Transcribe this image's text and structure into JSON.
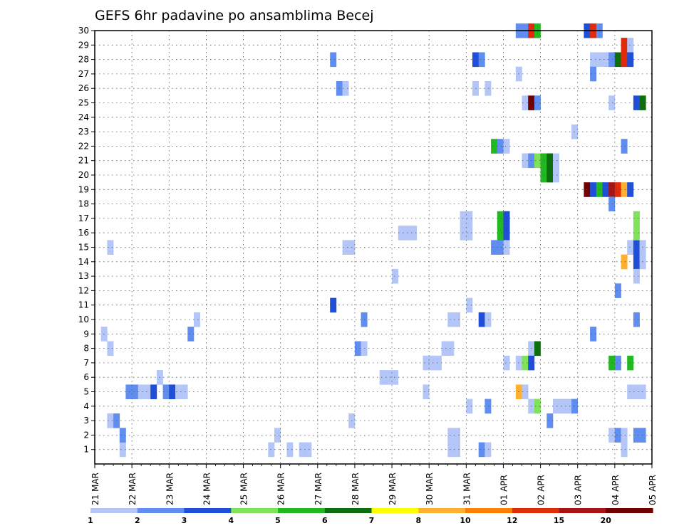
{
  "chart_data": {
    "type": "heatmap",
    "title": "GEFS 6hr padavine po ansamblima Becej",
    "xlabel": "",
    "ylabel": "",
    "x_range": [
      "21 MAR 00Z",
      "05 APR 00Z"
    ],
    "x_step_hours": 6,
    "x_ticks": [
      "21 MAR",
      "22 MAR",
      "23 MAR",
      "24 MAR",
      "25 MAR",
      "26 MAR",
      "27 MAR",
      "28 MAR",
      "29 MAR",
      "30 MAR",
      "31 MAR",
      "01 APR",
      "02 APR",
      "03 APR",
      "04 APR",
      "05 APR"
    ],
    "y_ticks": [
      1,
      2,
      3,
      4,
      5,
      6,
      7,
      8,
      9,
      10,
      11,
      12,
      13,
      14,
      15,
      16,
      17,
      18,
      19,
      20,
      21,
      22,
      23,
      24,
      25,
      26,
      27,
      28,
      29,
      30
    ],
    "y_range": [
      0,
      30
    ],
    "grid": true,
    "colorbar": {
      "labels": [
        "1",
        "2",
        "3",
        "4",
        "5",
        "6",
        "7",
        "8",
        "10",
        "12",
        "15",
        "20"
      ],
      "colors": [
        "#b3c6f7",
        "#5f8ef0",
        "#1f4fd8",
        "#7fe35a",
        "#22b822",
        "#0c6e0c",
        "#ffff00",
        "#ffb030",
        "#ff7f00",
        "#e02a0a",
        "#a81414",
        "#700000"
      ]
    },
    "cells": [
      [
        1,
        9,
        1
      ],
      [
        2,
        3,
        1
      ],
      [
        2,
        8,
        1
      ],
      [
        2,
        15,
        1
      ],
      [
        3,
        3,
        2
      ],
      [
        4,
        1,
        1
      ],
      [
        4,
        2,
        2
      ],
      [
        5,
        5,
        2
      ],
      [
        6,
        5,
        2
      ],
      [
        7,
        5,
        1
      ],
      [
        8,
        5,
        1
      ],
      [
        9,
        5,
        3
      ],
      [
        10,
        6,
        1
      ],
      [
        11,
        5,
        2
      ],
      [
        12,
        5,
        3
      ],
      [
        13,
        5,
        1
      ],
      [
        14,
        5,
        1
      ],
      [
        15,
        9,
        2
      ],
      [
        16,
        10,
        1
      ],
      [
        28,
        1,
        1
      ],
      [
        29,
        2,
        1
      ],
      [
        31,
        1,
        1
      ],
      [
        33,
        1,
        1
      ],
      [
        34,
        1,
        1
      ],
      [
        41,
        3,
        1
      ],
      [
        42,
        8,
        2
      ],
      [
        43,
        8,
        1
      ],
      [
        43,
        10,
        2
      ],
      [
        46,
        6,
        1
      ],
      [
        47,
        6,
        1
      ],
      [
        48,
        6,
        1
      ],
      [
        48,
        13,
        1
      ],
      [
        49,
        16,
        1
      ],
      [
        50,
        16,
        1
      ],
      [
        51,
        16,
        1
      ],
      [
        53,
        5,
        1
      ],
      [
        53,
        7,
        1
      ],
      [
        54,
        7,
        1
      ],
      [
        55,
        7,
        1
      ],
      [
        56,
        8,
        1
      ],
      [
        57,
        8,
        1
      ],
      [
        38,
        28,
        2
      ],
      [
        38,
        11,
        3
      ],
      [
        39,
        26,
        2
      ],
      [
        40,
        26,
        1
      ],
      [
        40,
        15,
        1
      ],
      [
        41,
        15,
        1
      ],
      [
        57,
        1,
        1
      ],
      [
        57,
        2,
        1
      ],
      [
        57,
        10,
        1
      ],
      [
        58,
        1,
        1
      ],
      [
        58,
        2,
        1
      ],
      [
        58,
        10,
        1
      ],
      [
        59,
        17,
        1
      ],
      [
        59,
        16,
        1
      ],
      [
        60,
        17,
        1
      ],
      [
        60,
        16,
        1
      ],
      [
        60,
        4,
        1
      ],
      [
        60,
        11,
        1
      ],
      [
        61,
        26,
        1
      ],
      [
        61,
        28,
        3
      ],
      [
        62,
        28,
        2
      ],
      [
        62,
        1,
        2
      ],
      [
        63,
        1,
        1
      ],
      [
        62,
        10,
        3
      ],
      [
        63,
        10,
        1
      ],
      [
        63,
        26,
        1
      ],
      [
        63,
        4,
        2
      ],
      [
        64,
        22,
        5
      ],
      [
        64,
        15,
        2
      ],
      [
        65,
        22,
        2
      ],
      [
        65,
        15,
        2
      ],
      [
        65,
        17,
        5
      ],
      [
        65,
        16,
        5
      ],
      [
        66,
        22,
        1
      ],
      [
        66,
        17,
        3
      ],
      [
        66,
        16,
        3
      ],
      [
        66,
        15,
        1
      ],
      [
        66,
        7,
        1
      ],
      [
        68,
        30,
        2
      ],
      [
        68,
        27,
        1
      ],
      [
        68,
        7,
        1
      ],
      [
        68,
        5,
        8
      ],
      [
        69,
        30,
        2
      ],
      [
        69,
        25,
        1
      ],
      [
        69,
        21,
        1
      ],
      [
        69,
        7,
        4
      ],
      [
        69,
        5,
        1
      ],
      [
        70,
        30,
        10
      ],
      [
        70,
        25,
        12
      ],
      [
        70,
        21,
        2
      ],
      [
        70,
        8,
        1
      ],
      [
        70,
        7,
        3
      ],
      [
        70,
        4,
        1
      ],
      [
        71,
        30,
        5
      ],
      [
        71,
        25,
        2
      ],
      [
        71,
        21,
        4
      ],
      [
        71,
        8,
        6
      ],
      [
        71,
        4,
        4
      ],
      [
        72,
        21,
        5
      ],
      [
        72,
        20,
        5
      ],
      [
        73,
        21,
        6
      ],
      [
        73,
        20,
        6
      ],
      [
        73,
        3,
        2
      ],
      [
        74,
        21,
        1
      ],
      [
        74,
        20,
        1
      ],
      [
        74,
        4,
        1
      ],
      [
        75,
        4,
        1
      ],
      [
        76,
        4,
        1
      ],
      [
        77,
        4,
        2
      ],
      [
        77,
        23,
        1
      ],
      [
        79,
        30,
        3
      ],
      [
        79,
        19,
        12
      ],
      [
        80,
        30,
        10
      ],
      [
        80,
        28,
        1
      ],
      [
        80,
        19,
        3
      ],
      [
        80,
        27,
        2
      ],
      [
        80,
        9,
        2
      ],
      [
        81,
        30,
        2
      ],
      [
        81,
        28,
        1
      ],
      [
        81,
        19,
        5
      ],
      [
        82,
        19,
        3
      ],
      [
        82,
        28,
        1
      ],
      [
        83,
        28,
        2
      ],
      [
        83,
        19,
        11
      ],
      [
        83,
        18,
        2
      ],
      [
        83,
        7,
        5
      ],
      [
        83,
        2,
        1
      ],
      [
        83,
        25,
        1
      ],
      [
        84,
        28,
        6
      ],
      [
        84,
        19,
        10
      ],
      [
        84,
        7,
        2
      ],
      [
        84,
        2,
        2
      ],
      [
        84,
        12,
        2
      ],
      [
        85,
        29,
        10
      ],
      [
        85,
        28,
        10
      ],
      [
        85,
        19,
        8
      ],
      [
        85,
        14,
        8
      ],
      [
        85,
        22,
        2
      ],
      [
        85,
        2,
        1
      ],
      [
        85,
        1,
        1
      ],
      [
        86,
        29,
        1
      ],
      [
        86,
        28,
        3
      ],
      [
        86,
        19,
        3
      ],
      [
        86,
        15,
        1
      ],
      [
        86,
        7,
        5
      ],
      [
        86,
        5,
        1
      ],
      [
        87,
        5,
        1
      ],
      [
        87,
        14,
        3
      ],
      [
        87,
        15,
        3
      ],
      [
        87,
        13,
        1
      ],
      [
        87,
        10,
        2
      ],
      [
        87,
        17,
        4
      ],
      [
        87,
        16,
        4
      ],
      [
        87,
        25,
        3
      ],
      [
        87,
        2,
        2
      ],
      [
        88,
        25,
        6
      ],
      [
        88,
        15,
        1
      ],
      [
        88,
        14,
        1
      ],
      [
        88,
        2,
        2
      ],
      [
        88,
        5,
        1
      ]
    ]
  }
}
